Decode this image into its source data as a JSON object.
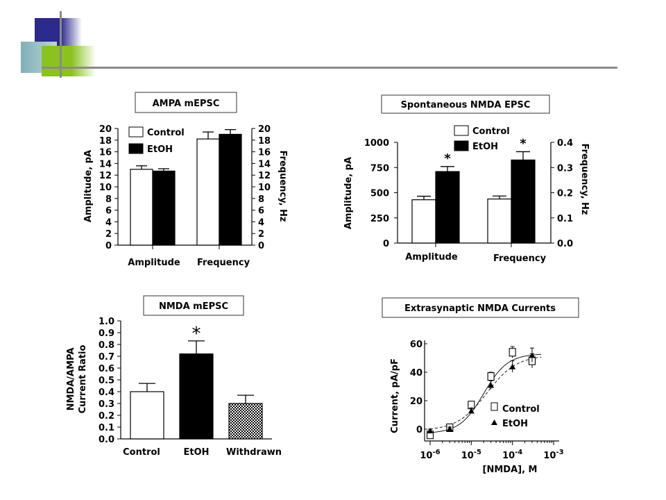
{
  "chart_data": [
    {
      "type": "bar",
      "title": "AMPA mEPSC",
      "categories": [
        "Amplitude",
        "Frequency"
      ],
      "series": [
        {
          "name": "Control",
          "values": [
            13.0,
            18.2
          ],
          "errors": [
            0.6,
            1.2
          ]
        },
        {
          "name": "EtOH",
          "values": [
            12.7,
            19.0
          ],
          "errors": [
            0.4,
            0.8
          ]
        }
      ],
      "ylabel": "Amplitude, pA",
      "y2label": "Frequency, Hz",
      "ylim": [
        0,
        20
      ],
      "y2lim": [
        0,
        20
      ],
      "yticks": [
        "0",
        "2",
        "4",
        "6",
        "8",
        "10",
        "12",
        "14",
        "16",
        "18",
        "20"
      ],
      "y2ticks": [
        "0",
        "2",
        "4",
        "6",
        "8",
        "10",
        "12",
        "14",
        "16",
        "18",
        "20"
      ],
      "legend": "top-left"
    },
    {
      "type": "bar",
      "title": "Spontaneous NMDA EPSC",
      "categories": [
        "Amplitude",
        "Frequency"
      ],
      "series": [
        {
          "name": "Control",
          "values": [
            430,
            0.175
          ],
          "errors": [
            35,
            0.012
          ]
        },
        {
          "name": "EtOH",
          "values": [
            710,
            0.33
          ],
          "errors": [
            50,
            0.033
          ]
        }
      ],
      "ylabel": "Amplitude, pA",
      "y2label": "Frequency, Hz",
      "ylim": [
        0,
        1000
      ],
      "y2lim": [
        0,
        0.4
      ],
      "yticks": [
        "0",
        "250",
        "500",
        "750",
        "1000"
      ],
      "y2ticks": [
        "0.0",
        "0.1",
        "0.2",
        "0.3",
        "0.4"
      ],
      "significance_marker": "*",
      "significant": [
        "EtOH-Amplitude",
        "EtOH-Frequency"
      ],
      "legend": "top-center"
    },
    {
      "type": "bar",
      "title": "NMDA mEPSC",
      "categories": [
        "Control",
        "EtOH",
        "Withdrawn"
      ],
      "values": [
        0.4,
        0.72,
        0.3
      ],
      "errors": [
        0.07,
        0.11,
        0.07
      ],
      "ylabel_line1": "NMDA/AMPA",
      "ylabel_line2": "Current Ratio",
      "ylim": [
        0,
        1.0
      ],
      "yticks": [
        "0.0",
        "0.1",
        "0.2",
        "0.3",
        "0.4",
        "0.5",
        "0.6",
        "0.7",
        "0.8",
        "0.9",
        "1.0"
      ],
      "significance_marker": "*",
      "significant": [
        "EtOH"
      ]
    },
    {
      "type": "scatter",
      "title": "Extrasynaptic NMDA Currents",
      "xlabel": "[NMDA], M",
      "ylabel": "Current, pA/pF",
      "xscale": "log",
      "xlim": [
        1e-06,
        0.001
      ],
      "ylim": [
        -5,
        65
      ],
      "xticks": [
        {
          "base": "10",
          "exp": "-6"
        },
        {
          "base": "10",
          "exp": "-5"
        },
        {
          "base": "10",
          "exp": "-4"
        },
        {
          "base": "10",
          "exp": "-3"
        }
      ],
      "yticks": [
        "0",
        "20",
        "40",
        "60"
      ],
      "series": [
        {
          "name": "Control",
          "marker": "square",
          "x": [
            1e-06,
            3e-06,
            1e-05,
            3e-05,
            0.0001,
            0.0003
          ],
          "y": [
            -4,
            1,
            17,
            37,
            54,
            48
          ],
          "errors": [
            2,
            2,
            2,
            3,
            4,
            5
          ]
        },
        {
          "name": "EtOH",
          "marker": "triangle",
          "x": [
            1e-06,
            3e-06,
            1e-05,
            3e-05,
            0.0001,
            0.0003
          ],
          "y": [
            -1,
            0.5,
            13,
            31,
            44,
            52
          ],
          "errors": [
            1,
            1,
            2,
            3,
            4,
            5
          ]
        }
      ],
      "legend": "bottom-right"
    }
  ]
}
